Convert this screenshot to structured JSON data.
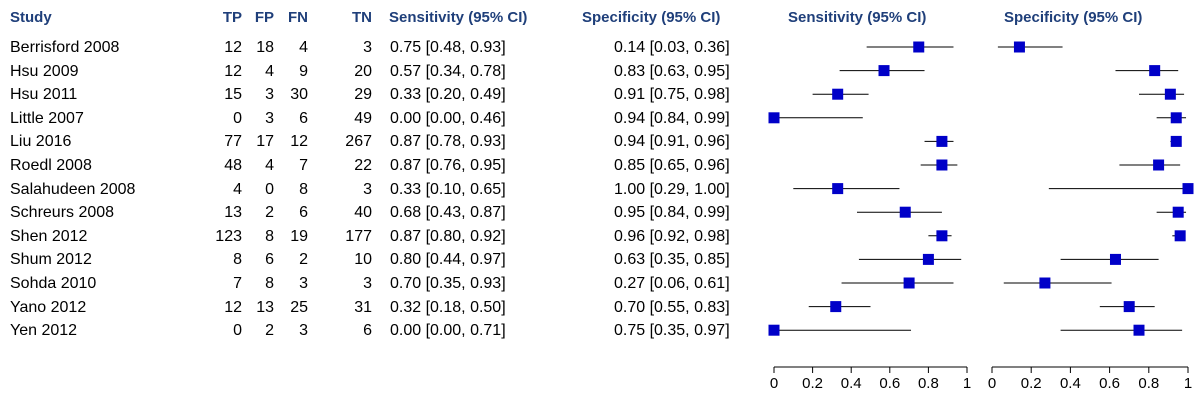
{
  "headers": {
    "study": "Study",
    "tp": "TP",
    "fp": "FP",
    "fn": "FN",
    "tn": "TN",
    "sens_ci": "Sensitivity (95% CI)",
    "spec_ci": "Specificity (95% CI)",
    "sens_plot": "Sensitivity (95% CI)",
    "spec_plot": "Specificity (95% CI)"
  },
  "rows": [
    {
      "study": "Berrisford 2008",
      "tp": "12",
      "fp": "18",
      "fn": "4",
      "tn": "3",
      "sens": "0.75 [0.48, 0.93]",
      "spec": "0.14 [0.03, 0.36]"
    },
    {
      "study": "Hsu 2009",
      "tp": "12",
      "fp": "4",
      "fn": "9",
      "tn": "20",
      "sens": "0.57 [0.34, 0.78]",
      "spec": "0.83 [0.63, 0.95]"
    },
    {
      "study": "Hsu 2011",
      "tp": "15",
      "fp": "3",
      "fn": "30",
      "tn": "29",
      "sens": "0.33 [0.20, 0.49]",
      "spec": "0.91 [0.75, 0.98]"
    },
    {
      "study": "Little 2007",
      "tp": "0",
      "fp": "3",
      "fn": "6",
      "tn": "49",
      "sens": "0.00 [0.00, 0.46]",
      "spec": "0.94 [0.84, 0.99]"
    },
    {
      "study": "Liu 2016",
      "tp": "77",
      "fp": "17",
      "fn": "12",
      "tn": "267",
      "sens": "0.87 [0.78, 0.93]",
      "spec": "0.94 [0.91, 0.96]"
    },
    {
      "study": "Roedl 2008",
      "tp": "48",
      "fp": "4",
      "fn": "7",
      "tn": "22",
      "sens": "0.87 [0.76, 0.95]",
      "spec": "0.85 [0.65, 0.96]"
    },
    {
      "study": "Salahudeen 2008",
      "tp": "4",
      "fp": "0",
      "fn": "8",
      "tn": "3",
      "sens": "0.33 [0.10, 0.65]",
      "spec": "1.00 [0.29, 1.00]"
    },
    {
      "study": "Schreurs 2008",
      "tp": "13",
      "fp": "2",
      "fn": "6",
      "tn": "40",
      "sens": "0.68 [0.43, 0.87]",
      "spec": "0.95 [0.84, 0.99]"
    },
    {
      "study": "Shen 2012",
      "tp": "123",
      "fp": "8",
      "fn": "19",
      "tn": "177",
      "sens": "0.87 [0.80, 0.92]",
      "spec": "0.96 [0.92, 0.98]"
    },
    {
      "study": "Shum 2012",
      "tp": "8",
      "fp": "6",
      "fn": "2",
      "tn": "10",
      "sens": "0.80 [0.44, 0.97]",
      "spec": "0.63 [0.35, 0.85]"
    },
    {
      "study": "Sohda 2010",
      "tp": "7",
      "fp": "8",
      "fn": "3",
      "tn": "3",
      "sens": "0.70 [0.35, 0.93]",
      "spec": "0.27 [0.06, 0.61]"
    },
    {
      "study": "Yano 2012",
      "tp": "12",
      "fp": "13",
      "fn": "25",
      "tn": "31",
      "sens": "0.32 [0.18, 0.50]",
      "spec": "0.70 [0.55, 0.83]"
    },
    {
      "study": "Yen 2012",
      "tp": "0",
      "fp": "2",
      "fn": "3",
      "tn": "6",
      "sens": "0.00 [0.00, 0.71]",
      "spec": "0.75 [0.35, 0.97]"
    }
  ],
  "chart_data": {
    "type": "forest",
    "marker_color": "#0000c8",
    "header_color": "#1f3f7a",
    "xlim": [
      0,
      1
    ],
    "ticks": [
      "0",
      "0.2",
      "0.4",
      "0.6",
      "0.8",
      "1"
    ],
    "panels": [
      {
        "name": "Sensitivity (95% CI)",
        "points": [
          {
            "study": "Berrisford 2008",
            "est": 0.75,
            "lo": 0.48,
            "hi": 0.93
          },
          {
            "study": "Hsu 2009",
            "est": 0.57,
            "lo": 0.34,
            "hi": 0.78
          },
          {
            "study": "Hsu 2011",
            "est": 0.33,
            "lo": 0.2,
            "hi": 0.49
          },
          {
            "study": "Little 2007",
            "est": 0.0,
            "lo": 0.0,
            "hi": 0.46
          },
          {
            "study": "Liu 2016",
            "est": 0.87,
            "lo": 0.78,
            "hi": 0.93
          },
          {
            "study": "Roedl 2008",
            "est": 0.87,
            "lo": 0.76,
            "hi": 0.95
          },
          {
            "study": "Salahudeen 2008",
            "est": 0.33,
            "lo": 0.1,
            "hi": 0.65
          },
          {
            "study": "Schreurs 2008",
            "est": 0.68,
            "lo": 0.43,
            "hi": 0.87
          },
          {
            "study": "Shen 2012",
            "est": 0.87,
            "lo": 0.8,
            "hi": 0.92
          },
          {
            "study": "Shum 2012",
            "est": 0.8,
            "lo": 0.44,
            "hi": 0.97
          },
          {
            "study": "Sohda 2010",
            "est": 0.7,
            "lo": 0.35,
            "hi": 0.93
          },
          {
            "study": "Yano 2012",
            "est": 0.32,
            "lo": 0.18,
            "hi": 0.5
          },
          {
            "study": "Yen 2012",
            "est": 0.0,
            "lo": 0.0,
            "hi": 0.71
          }
        ]
      },
      {
        "name": "Specificity (95% CI)",
        "points": [
          {
            "study": "Berrisford 2008",
            "est": 0.14,
            "lo": 0.03,
            "hi": 0.36
          },
          {
            "study": "Hsu 2009",
            "est": 0.83,
            "lo": 0.63,
            "hi": 0.95
          },
          {
            "study": "Hsu 2011",
            "est": 0.91,
            "lo": 0.75,
            "hi": 0.98
          },
          {
            "study": "Little 2007",
            "est": 0.94,
            "lo": 0.84,
            "hi": 0.99
          },
          {
            "study": "Liu 2016",
            "est": 0.94,
            "lo": 0.91,
            "hi": 0.96
          },
          {
            "study": "Roedl 2008",
            "est": 0.85,
            "lo": 0.65,
            "hi": 0.96
          },
          {
            "study": "Salahudeen 2008",
            "est": 1.0,
            "lo": 0.29,
            "hi": 1.0
          },
          {
            "study": "Schreurs 2008",
            "est": 0.95,
            "lo": 0.84,
            "hi": 0.99
          },
          {
            "study": "Shen 2012",
            "est": 0.96,
            "lo": 0.92,
            "hi": 0.98
          },
          {
            "study": "Shum 2012",
            "est": 0.63,
            "lo": 0.35,
            "hi": 0.85
          },
          {
            "study": "Sohda 2010",
            "est": 0.27,
            "lo": 0.06,
            "hi": 0.61
          },
          {
            "study": "Yano 2012",
            "est": 0.7,
            "lo": 0.55,
            "hi": 0.83
          },
          {
            "study": "Yen 2012",
            "est": 0.75,
            "lo": 0.35,
            "hi": 0.97
          }
        ]
      }
    ]
  }
}
